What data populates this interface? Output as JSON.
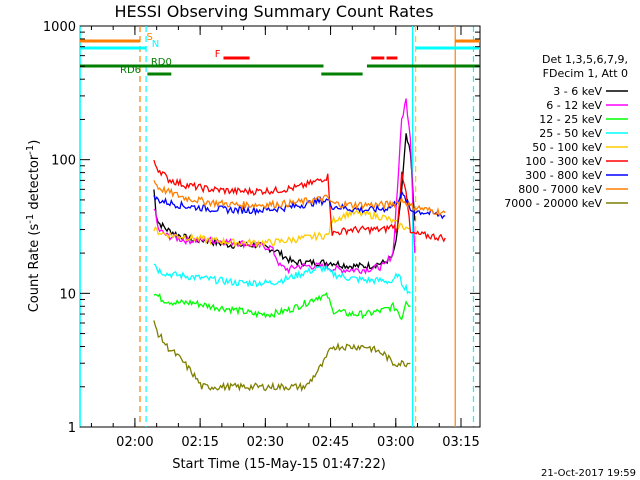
{
  "chart_data": {
    "type": "line",
    "title": "HESSI Observing Summary Count Rates",
    "xlabel": "Start Time (15-May-15 01:47:22)",
    "ylabel_main": "Count Rate (s",
    "ylabel_exp1": "-1",
    "ylabel_mid": " detector",
    "ylabel_exp2": "-1",
    "ylabel_close": ")",
    "yscale": "log",
    "ylim": [
      1,
      1000
    ],
    "xlim_minutes": [
      0,
      92
    ],
    "x_ticks": [
      {
        "label": "02:00",
        "minute": 12.63
      },
      {
        "label": "02:15",
        "minute": 27.63
      },
      {
        "label": "02:30",
        "minute": 42.63
      },
      {
        "label": "02:45",
        "minute": 57.63
      },
      {
        "label": "03:00",
        "minute": 72.63
      },
      {
        "label": "03:15",
        "minute": 87.63
      }
    ],
    "y_ticks": [
      {
        "label": "1",
        "value": 1
      },
      {
        "label": "10",
        "value": 10
      },
      {
        "label": "100",
        "value": 100
      },
      {
        "label": "1000",
        "value": 1000
      }
    ],
    "legend_header": [
      "Det 1,3,5,6,7,9,",
      "FDecim 1, Att 0"
    ],
    "legend_placement": "right",
    "series": [
      {
        "name": "3 - 6 keV",
        "color": "#000000",
        "x": [
          17,
          17.5,
          18,
          20,
          23,
          26,
          29,
          31,
          35,
          41,
          45,
          49,
          53,
          55,
          57,
          58,
          62,
          66,
          70,
          72,
          73,
          74,
          75,
          76,
          77
        ],
        "y": [
          60,
          40,
          34,
          30,
          27,
          25,
          25,
          24,
          23,
          23,
          21,
          17,
          17,
          17,
          17,
          17,
          16,
          16,
          17,
          19,
          28,
          60,
          150,
          110,
          35
        ]
      },
      {
        "name": "6 - 12 keV",
        "color": "#ff00ff",
        "x": [
          17,
          18,
          20,
          24,
          30,
          36,
          40,
          44,
          45,
          46,
          48,
          50,
          55,
          60,
          65,
          70,
          72,
          73,
          74,
          75,
          76,
          77
        ],
        "y": [
          45,
          30,
          27,
          25,
          25,
          24,
          23,
          22,
          19,
          16,
          15,
          16,
          16,
          15,
          15,
          16,
          20,
          60,
          200,
          280,
          150,
          20
        ]
      },
      {
        "name": "12 - 25 keV",
        "color": "#00ff00",
        "x": [
          17,
          19,
          22,
          26,
          30,
          36,
          40,
          44,
          48,
          52,
          55,
          57,
          58,
          62,
          66,
          70,
          72,
          73,
          74,
          75,
          76
        ],
        "y": [
          10,
          9,
          8.5,
          8.5,
          8,
          7.5,
          7,
          7,
          7.5,
          8.5,
          9.5,
          9.5,
          7.5,
          7,
          7,
          7.5,
          8,
          7.5,
          6.5,
          9,
          8
        ]
      },
      {
        "name": "25 - 50 keV",
        "color": "#00ffff",
        "x": [
          17,
          18,
          20,
          24,
          28,
          32,
          36,
          40,
          44,
          48,
          52,
          56,
          58,
          62,
          66,
          70,
          72,
          73,
          74,
          75,
          76
        ],
        "y": [
          17,
          15,
          14,
          13.5,
          13,
          12.5,
          12,
          12,
          12,
          13,
          14.5,
          15.5,
          14,
          13,
          12.5,
          12.5,
          12,
          14,
          12,
          11,
          10
        ]
      },
      {
        "name": "50 - 100 keV",
        "color": "#ffcc00",
        "x": [
          17,
          19,
          22,
          26,
          30,
          36,
          40,
          44,
          48,
          52,
          55,
          57,
          58,
          62,
          66,
          70,
          73,
          76
        ],
        "y": [
          30,
          28,
          27,
          26,
          25,
          24,
          24,
          24,
          25,
          26,
          27,
          27,
          35,
          40,
          39,
          37,
          33,
          30
        ]
      },
      {
        "name": "100 - 300 keV",
        "color": "#ff0000",
        "x": [
          17,
          18,
          19,
          20,
          24,
          30,
          36,
          40,
          45,
          50,
          54,
          57,
          58,
          62,
          66,
          70,
          72,
          73,
          74,
          75,
          76,
          80,
          84
        ],
        "y": [
          95,
          85,
          80,
          72,
          65,
          60,
          58,
          58,
          59,
          62,
          68,
          75,
          28,
          30,
          30,
          30,
          32,
          30,
          80,
          60,
          28,
          27,
          26
        ]
      },
      {
        "name": "300 - 800 keV",
        "color": "#0000ff",
        "x": [
          17,
          18,
          20,
          24,
          30,
          36,
          42,
          48,
          54,
          57,
          58,
          62,
          66,
          70,
          72,
          73,
          74,
          75,
          76,
          80,
          84
        ],
        "y": [
          52,
          50,
          48,
          45,
          43,
          42,
          42,
          44,
          48,
          50,
          45,
          43,
          42,
          43,
          45,
          50,
          55,
          50,
          42,
          40,
          38
        ]
      },
      {
        "name": "800 - 7000 keV",
        "color": "#ff7f00",
        "x": [
          17,
          18,
          20,
          24,
          30,
          36,
          42,
          48,
          54,
          57,
          58,
          62,
          66,
          70,
          72,
          73,
          74,
          75,
          76,
          80,
          84
        ],
        "y": [
          70,
          62,
          58,
          52,
          48,
          46,
          46,
          47,
          50,
          52,
          47,
          46,
          46,
          46,
          47,
          48,
          50,
          48,
          45,
          42,
          40
        ]
      },
      {
        "name": "7000 - 20000 keV",
        "color": "#7f7f00",
        "x": [
          17,
          18,
          20,
          22,
          24,
          26,
          28,
          32,
          36,
          40,
          44,
          48,
          52,
          56,
          58,
          62,
          66,
          70,
          72,
          73,
          74,
          75,
          76
        ],
        "y": [
          6,
          5,
          4,
          3.5,
          3,
          2.5,
          2,
          2,
          2,
          2,
          2,
          2,
          2,
          3,
          4,
          4,
          4,
          3.5,
          3,
          3,
          3,
          3,
          3
        ]
      }
    ],
    "vertical_lines": [
      {
        "minute": 13.8,
        "color": "#ff7f00",
        "style": "dashed"
      },
      {
        "minute": 15.2,
        "color": "#00ffff",
        "style": "dashed"
      },
      {
        "minute": 76.5,
        "color": "#00ffff",
        "style": "solid"
      },
      {
        "minute": 77.2,
        "color": "#ffcc00",
        "style": "dashed"
      },
      {
        "minute": 86.3,
        "color": "#ff7f00",
        "style": "solid"
      },
      {
        "minute": 90.5,
        "color": "#00ffff",
        "style": "dashed"
      },
      {
        "minute": 0.05,
        "color": "#00ffff",
        "style": "solid"
      }
    ],
    "flag_bars": [
      {
        "label": "S",
        "color": "#ff7f00",
        "segments": [
          [
            0,
            13.8
          ],
          [
            86.3,
            92
          ]
        ]
      },
      {
        "label": "N",
        "color": "#00ffff",
        "segments": [
          [
            0,
            15.2
          ],
          [
            77.2,
            92
          ]
        ]
      },
      {
        "label": "F",
        "color": "#ff0000",
        "segments": [
          [
            33,
            39
          ],
          [
            67,
            70
          ],
          [
            70.5,
            73
          ]
        ]
      },
      {
        "label": "RD0",
        "color": "#007f00",
        "segments": [
          [
            0,
            56
          ],
          [
            66,
            92
          ]
        ]
      },
      {
        "label": "RD6",
        "color": "#007f00",
        "segments": [
          [
            15.5,
            21
          ],
          [
            55.5,
            65
          ]
        ]
      }
    ],
    "timestamp": "21-Oct-2017 19:59"
  }
}
